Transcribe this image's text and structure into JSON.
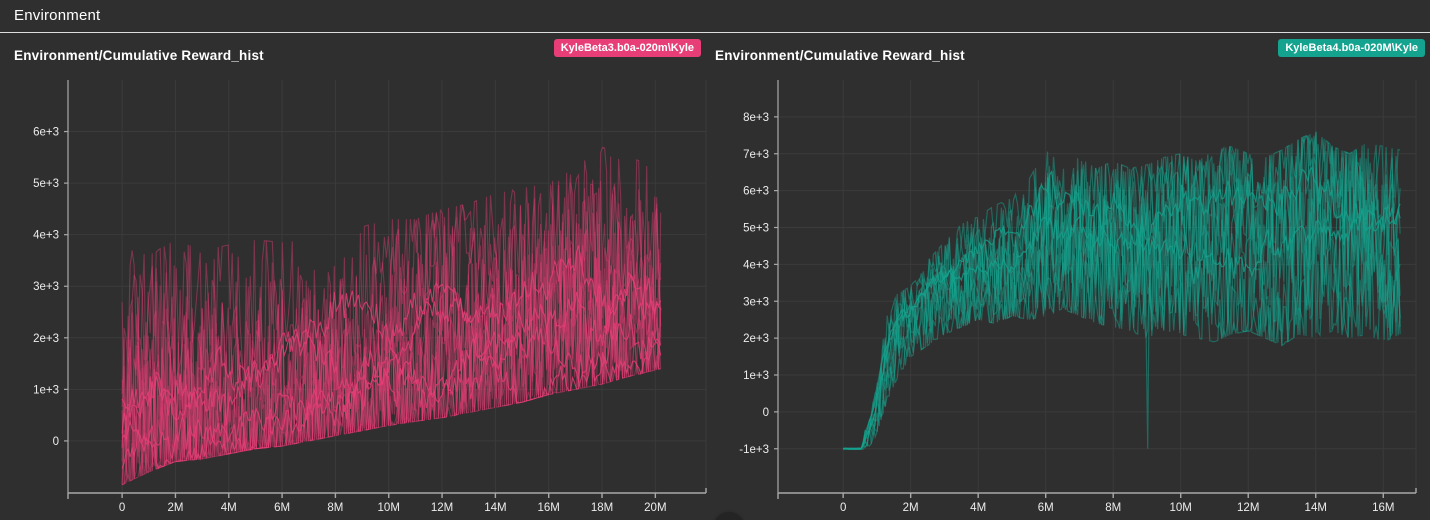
{
  "header": {
    "title": "Environment"
  },
  "theme": {
    "background": "#2f2f2f",
    "grid_color": "#3b3b3b",
    "axis_color": "#a9a9a9",
    "tick_text_color": "#ececec",
    "divider_color": "#dcdcdc",
    "pink": "#e83e77",
    "teal": "#14a38e"
  },
  "chart_data": [
    {
      "type": "line",
      "title": "Environment/Cumulative Reward_hist",
      "legend_position": "top-right",
      "grid": true,
      "series": [
        {
          "name": "KyleBeta3.b0a-020m\\Kyle",
          "color": "#e83e77"
        }
      ],
      "x_axis": {
        "min": -2030000,
        "max": 21900000,
        "tick_values": [
          0,
          2000000,
          4000000,
          6000000,
          8000000,
          10000000,
          12000000,
          14000000,
          16000000,
          18000000,
          20000000
        ],
        "tick_labels": [
          "0",
          "2M",
          "4M",
          "6M",
          "8M",
          "10M",
          "12M",
          "14M",
          "16M",
          "18M",
          "20M"
        ]
      },
      "y_axis": {
        "min": -1010,
        "max": 7000,
        "tick_values": [
          0,
          1000,
          2000,
          3000,
          4000,
          5000,
          6000
        ],
        "tick_labels": [
          "0",
          "1e+3",
          "2e+3",
          "3e+3",
          "4e+3",
          "5e+3",
          "6e+3"
        ]
      },
      "data_start": 0,
      "data_end": 20200000,
      "envelope": {
        "x_millions": [
          0,
          1,
          2,
          3,
          4,
          5,
          6,
          7,
          8,
          9,
          10,
          11,
          12,
          13,
          14,
          15,
          16,
          17,
          18,
          19,
          20.2
        ],
        "low": [
          -850,
          -600,
          -400,
          -350,
          -250,
          -150,
          -100,
          0,
          100,
          200,
          300,
          380,
          450,
          550,
          650,
          750,
          900,
          1000,
          1100,
          1250,
          1400
        ],
        "high": [
          3750,
          3600,
          3900,
          3700,
          3800,
          3900,
          3850,
          3900,
          4100,
          4150,
          4300,
          4300,
          4500,
          4600,
          4800,
          4900,
          5000,
          5300,
          5700,
          5500,
          5300
        ]
      }
    },
    {
      "type": "line",
      "title": "Environment/Cumulative Reward_hist",
      "legend_position": "top-right",
      "grid": true,
      "series": [
        {
          "name": "KyleBeta4.b0a-020M\\Kyle",
          "color": "#14a38e"
        }
      ],
      "x_axis": {
        "min": -1930000,
        "max": 16970000,
        "tick_values": [
          0,
          2000000,
          4000000,
          6000000,
          8000000,
          10000000,
          12000000,
          14000000,
          16000000
        ],
        "tick_labels": [
          "0",
          "2M",
          "4M",
          "6M",
          "8M",
          "10M",
          "12M",
          "14M",
          "16M"
        ]
      },
      "y_axis": {
        "min": -2200,
        "max": 9000,
        "tick_values": [
          -1000,
          0,
          1000,
          2000,
          3000,
          4000,
          5000,
          6000,
          7000,
          8000
        ],
        "tick_labels": [
          "-1e+3",
          "0",
          "1e+3",
          "2e+3",
          "3e+3",
          "4e+3",
          "5e+3",
          "6e+3",
          "7e+3",
          "8e+3"
        ]
      },
      "data_start": 0,
      "data_end": 16500000,
      "dip": {
        "x_millions": 9.05,
        "y": -1000
      },
      "envelope": {
        "x_millions": [
          0,
          0.55,
          0.7,
          0.9,
          1.1,
          1.3,
          1.6,
          2,
          2.5,
          3,
          3.5,
          4,
          4.5,
          5,
          5.5,
          6,
          6.5,
          7,
          7.5,
          8,
          8.5,
          9,
          9.5,
          10,
          10.5,
          11,
          11.5,
          12,
          12.5,
          13,
          13.5,
          14,
          14.5,
          15,
          15.5,
          16,
          16.5
        ],
        "low": [
          -1020,
          -1020,
          -1000,
          -800,
          -300,
          300,
          900,
          1500,
          1800,
          2100,
          2300,
          2500,
          2400,
          2600,
          2500,
          2600,
          2800,
          2600,
          2400,
          2300,
          2200,
          2000,
          2200,
          2100,
          2000,
          1900,
          2100,
          2200,
          2000,
          1800,
          2100,
          2000,
          2200,
          2000,
          2100,
          1900,
          2100
        ],
        "high": [
          -980,
          -980,
          -300,
          300,
          1500,
          2600,
          3200,
          3400,
          4100,
          4600,
          5100,
          5300,
          5600,
          5800,
          6300,
          7100,
          6700,
          6900,
          6600,
          6800,
          6600,
          6700,
          6900,
          7000,
          6800,
          7100,
          7200,
          7000,
          6900,
          7100,
          7400,
          7600,
          7200,
          7000,
          7300,
          7200,
          7100
        ]
      }
    }
  ]
}
